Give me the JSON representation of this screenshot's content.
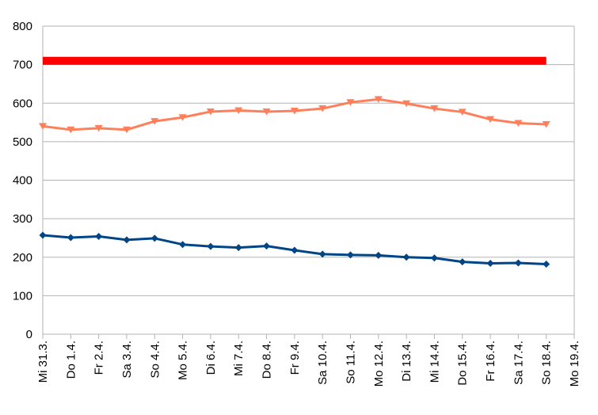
{
  "chart_data": {
    "type": "line",
    "title": "",
    "xlabel": "",
    "ylabel": "",
    "categories": [
      "Mi 31.3.",
      "Do 1.4.",
      "Fr 2.4.",
      "Sa 3.4.",
      "So 4.4.",
      "Mo 5.4.",
      "Di 6.4.",
      "Mi 7.4.",
      "Do 8.4.",
      "Fr 9.4.",
      "Sa 10.4.",
      "So 11.4.",
      "Mo 12.4.",
      "Di 13.4.",
      "Mi 14.4.",
      "Do 15.4.",
      "Fr 16.4.",
      "Sa 17.4.",
      "So 18.4.",
      "Mo 19.4."
    ],
    "ylim": [
      0,
      800
    ],
    "yticks": [
      0,
      100,
      200,
      300,
      400,
      500,
      600,
      700,
      800
    ],
    "grid": true,
    "legend": "none",
    "series": [
      {
        "color": "#ff0000",
        "marker": "none",
        "values": [
          710,
          710,
          710,
          710,
          710,
          710,
          710,
          710,
          710,
          710,
          710,
          710,
          710,
          710,
          710,
          710,
          710,
          710,
          710,
          null
        ]
      },
      {
        "color": "#ff7f5a",
        "marker": "triangle-down",
        "values": [
          540,
          531,
          535,
          531,
          553,
          563,
          578,
          581,
          578,
          580,
          586,
          602,
          610,
          599,
          586,
          577,
          558,
          548,
          545,
          null
        ]
      },
      {
        "color": "#004586",
        "marker": "diamond",
        "values": [
          257,
          251,
          254,
          245,
          249,
          233,
          228,
          225,
          229,
          218,
          208,
          206,
          205,
          200,
          198,
          188,
          184,
          185,
          182,
          null
        ]
      }
    ]
  }
}
